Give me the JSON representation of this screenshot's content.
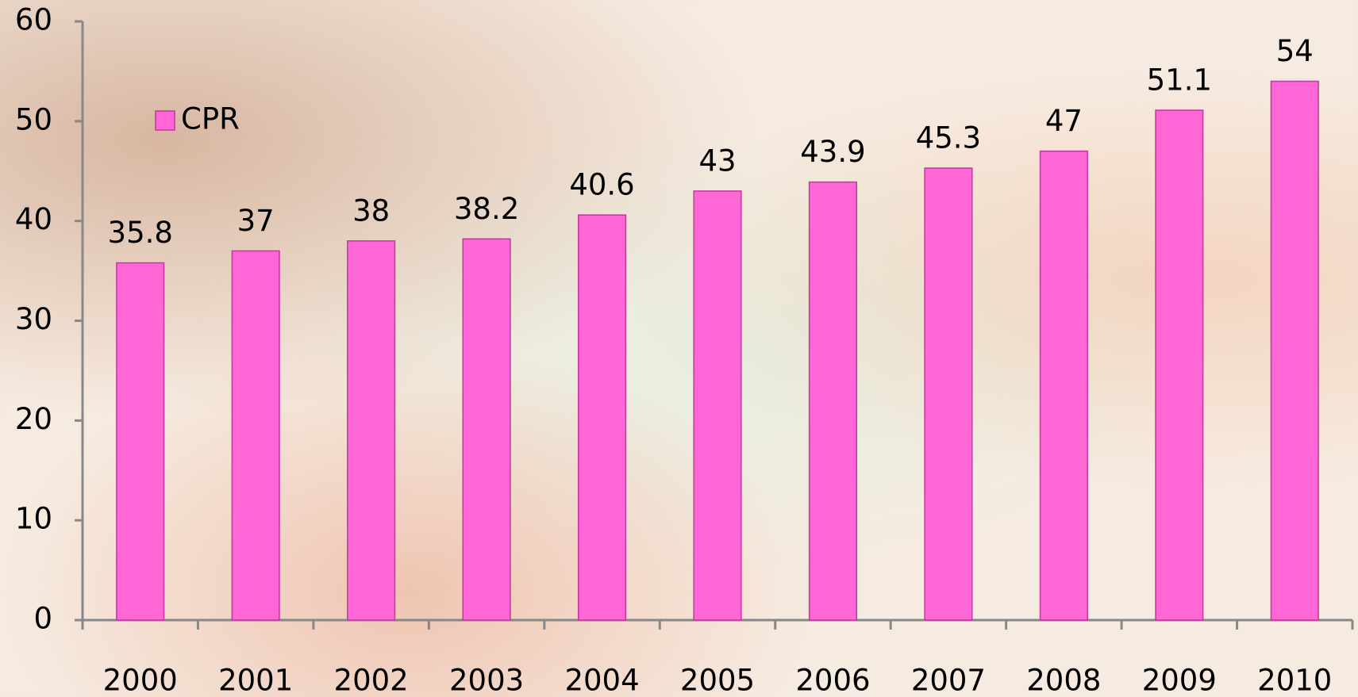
{
  "chart_data": {
    "type": "bar",
    "categories": [
      "2000",
      "2001",
      "2002",
      "2003",
      "2004",
      "2005",
      "2006",
      "2007",
      "2008",
      "2009",
      "2010"
    ],
    "series": [
      {
        "name": "CPR",
        "color": "#ff66d6",
        "values": [
          35.8,
          37,
          38,
          38.2,
          40.6,
          43,
          43.9,
          45.3,
          47,
          51.1,
          54
        ]
      }
    ],
    "ylim": [
      0,
      60
    ],
    "yticks": [
      0,
      10,
      20,
      30,
      40,
      50,
      60
    ],
    "legend": "upper left",
    "data_labels": true
  }
}
